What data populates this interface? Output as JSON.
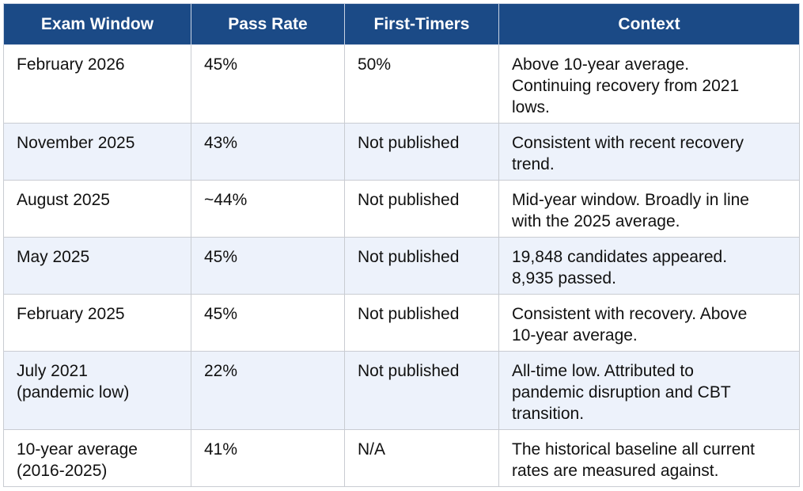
{
  "table": {
    "headers": [
      "Exam Window",
      "Pass Rate",
      "First-Timers",
      "Context"
    ],
    "rows": [
      {
        "window": [
          "February 2026"
        ],
        "pass_rate": "45%",
        "first_timers": "50%",
        "context": [
          "Above 10-year average.",
          "Continuing recovery from 2021",
          "lows."
        ]
      },
      {
        "window": [
          "November 2025"
        ],
        "pass_rate": "43%",
        "first_timers": "Not published",
        "context": [
          "Consistent with recent recovery",
          "trend."
        ]
      },
      {
        "window": [
          "August 2025"
        ],
        "pass_rate": "~44%",
        "first_timers": "Not published",
        "context": [
          "Mid-year window. Broadly in line",
          "with the 2025 average."
        ]
      },
      {
        "window": [
          "May 2025"
        ],
        "pass_rate": "45%",
        "first_timers": "Not published",
        "context": [
          "19,848 candidates appeared.",
          "8,935 passed."
        ]
      },
      {
        "window": [
          "February 2025"
        ],
        "pass_rate": "45%",
        "first_timers": "Not published",
        "context": [
          "Consistent with recovery. Above",
          "10-year average."
        ]
      },
      {
        "window": [
          "July 2021",
          "(pandemic low)"
        ],
        "pass_rate": "22%",
        "first_timers": "Not published",
        "context": [
          "All-time low. Attributed to",
          "pandemic disruption and CBT",
          "transition."
        ]
      },
      {
        "window": [
          "10-year average",
          "(2016-2025)"
        ],
        "pass_rate": "41%",
        "first_timers": "N/A",
        "context": [
          "The historical baseline all current",
          "rates are measured against."
        ]
      }
    ]
  },
  "colors": {
    "header_bg": "#1b4a86",
    "header_text": "#ffffff",
    "alt_row_bg": "#edf2fb",
    "border": "#c9ccd2"
  }
}
